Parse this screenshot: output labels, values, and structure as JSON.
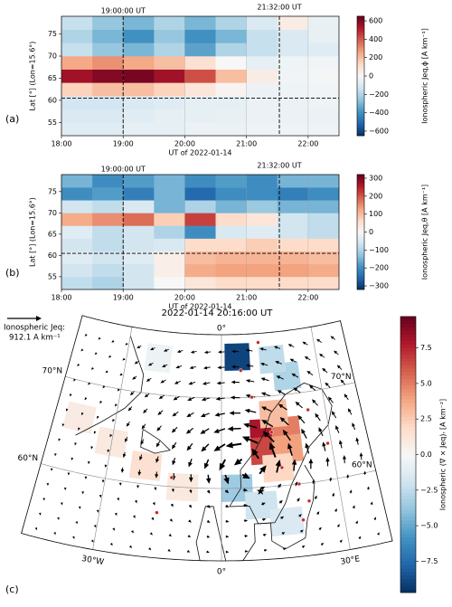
{
  "chart_data": [
    {
      "type": "heatmap",
      "panel": "(a)",
      "x_label": "UT of 2022-01-14",
      "y_label": "Lat [°] (Lon=15.6°)",
      "colorbar_label": "Ionospheric Jeq,ϕ [A km⁻¹]",
      "x_edges": [
        18,
        18.5,
        19,
        19.5,
        20,
        20.5,
        21,
        21.5,
        22,
        22.5
      ],
      "y_edges": [
        52,
        55,
        58,
        61,
        64,
        67,
        70,
        73,
        76,
        79
      ],
      "z": [
        [
          -80,
          -80,
          -60,
          -60,
          -40,
          -40,
          -30,
          -30,
          -30
        ],
        [
          -100,
          -100,
          -80,
          -60,
          -60,
          -50,
          -40,
          -40,
          -40
        ],
        [
          -120,
          -120,
          -100,
          -80,
          -60,
          -60,
          -40,
          -40,
          -30
        ],
        [
          150,
          200,
          200,
          150,
          80,
          20,
          -40,
          -30,
          -20
        ],
        [
          550,
          600,
          620,
          550,
          420,
          200,
          50,
          -20,
          -10
        ],
        [
          250,
          300,
          250,
          200,
          100,
          0,
          -60,
          -30,
          -20
        ],
        [
          -150,
          -250,
          -300,
          -200,
          -350,
          -200,
          -150,
          -100,
          -80
        ],
        [
          -200,
          -300,
          -400,
          -250,
          -400,
          -300,
          -150,
          -100,
          -50
        ],
        [
          -150,
          -250,
          -300,
          -200,
          -300,
          -200,
          -100,
          50,
          -50
        ]
      ],
      "xlim": [
        18,
        22.5
      ],
      "ylim": [
        52,
        79
      ],
      "xticks": [
        {
          "value": 18,
          "label": "18:00"
        },
        {
          "value": 19,
          "label": "19:00"
        },
        {
          "value": 20,
          "label": "20:00"
        },
        {
          "value": 21,
          "label": "21:00"
        },
        {
          "value": 22,
          "label": "22:00"
        }
      ],
      "yticks": [
        55,
        60,
        65,
        70,
        75
      ],
      "clim": [
        -650,
        650
      ],
      "cbar_ticks": [
        {
          "value": 600,
          "label": "600"
        },
        {
          "value": 400,
          "label": "400"
        },
        {
          "value": 200,
          "label": "200"
        },
        {
          "value": 0,
          "label": "0"
        },
        {
          "value": -200,
          "label": "−200"
        },
        {
          "value": -400,
          "label": "−400"
        },
        {
          "value": -600,
          "label": "−600"
        }
      ],
      "markers": [
        {
          "x": 19,
          "label": "19:00:00 UT"
        },
        {
          "x": 21.533,
          "label": "21:32:00 UT"
        }
      ],
      "hline": 60.5,
      "grid": true,
      "colors": [
        "#053061",
        "#2166ac",
        "#4393c3",
        "#92c5de",
        "#d1e5f0",
        "#f7f7f7",
        "#fddbc7",
        "#f4a582",
        "#d6604d",
        "#b2182b",
        "#67001f"
      ]
    },
    {
      "type": "heatmap",
      "panel": "(b)",
      "x_label": "UT of 2022-01-14",
      "y_label": "Lat [°] (Lon=15.6°)",
      "colorbar_label": "Ionospheric Jeq,θ [A km⁻¹]",
      "x_edges": [
        18,
        18.5,
        19,
        19.5,
        20,
        20.5,
        21,
        21.5,
        22,
        22.5
      ],
      "y_edges": [
        52,
        55,
        58,
        61,
        64,
        67,
        70,
        73,
        76,
        79
      ],
      "z": [
        [
          -80,
          -100,
          -60,
          0,
          40,
          60,
          60,
          60,
          60
        ],
        [
          -60,
          -80,
          -60,
          20,
          120,
          130,
          130,
          130,
          120
        ],
        [
          -40,
          -60,
          -40,
          20,
          100,
          110,
          110,
          110,
          100
        ],
        [
          -60,
          -80,
          -60,
          -50,
          60,
          60,
          80,
          60,
          60
        ],
        [
          -40,
          -80,
          -60,
          -100,
          -200,
          -50,
          -40,
          -60,
          -80
        ],
        [
          120,
          150,
          180,
          80,
          220,
          60,
          40,
          -60,
          -80
        ],
        [
          -60,
          -80,
          -50,
          -150,
          -100,
          -150,
          -120,
          -150,
          -150
        ],
        [
          -200,
          -180,
          -220,
          -150,
          -250,
          -200,
          -200,
          -220,
          -200
        ],
        [
          -150,
          -200,
          -180,
          -150,
          -200,
          -180,
          -200,
          -150,
          -150
        ]
      ],
      "xlim": [
        18,
        22.5
      ],
      "ylim": [
        52,
        79
      ],
      "xticks": [
        {
          "value": 18,
          "label": "18:00"
        },
        {
          "value": 19,
          "label": "19:00"
        },
        {
          "value": 20,
          "label": "20:00"
        },
        {
          "value": 21,
          "label": "21:00"
        },
        {
          "value": 22,
          "label": "22:00"
        }
      ],
      "yticks": [
        55,
        60,
        65,
        70,
        75
      ],
      "clim": [
        -320,
        320
      ],
      "cbar_ticks": [
        {
          "value": 300,
          "label": "300"
        },
        {
          "value": 200,
          "label": "200"
        },
        {
          "value": 100,
          "label": "100"
        },
        {
          "value": 0,
          "label": "0"
        },
        {
          "value": -100,
          "label": "−100"
        },
        {
          "value": -200,
          "label": "−200"
        },
        {
          "value": -300,
          "label": "−300"
        }
      ],
      "markers": [
        {
          "x": 19,
          "label": "19:00:00 UT"
        },
        {
          "x": 21.533,
          "label": "21:32:00 UT"
        }
      ],
      "hline": 60.5,
      "grid": true,
      "colors": [
        "#053061",
        "#2166ac",
        "#4393c3",
        "#92c5de",
        "#d1e5f0",
        "#f7f7f7",
        "#fddbc7",
        "#f4a582",
        "#d6604d",
        "#b2182b",
        "#67001f"
      ]
    },
    {
      "type": "map",
      "panel": "(c)",
      "title": "2022-01-14 20:16:00 UT",
      "reference_label": "Ionospheric Jeq:",
      "reference_text": "912.1 A km⁻¹",
      "colorbar_label": "Ionospheric (∇ × Jeq)ᵣ [A km⁻²]",
      "patches": {
        "lat": [
          66,
          64,
          66,
          64,
          68,
          62,
          74.5,
          72,
          74,
          60,
          58,
          56,
          64,
          62,
          60,
          66,
          74
        ],
        "lon": [
          12,
          12,
          18,
          18,
          15,
          15,
          5,
          20,
          16,
          4,
          10,
          16,
          -30,
          -20,
          -10,
          -40,
          -20
        ],
        "values": [
          8.0,
          6.5,
          5.0,
          4.0,
          3.0,
          2.0,
          -9.0,
          -3.0,
          -2.5,
          -3.5,
          -2.0,
          -1.5,
          1.0,
          1.5,
          1.0,
          0.8,
          -0.5
        ]
      },
      "graticule": {
        "lats": [
          60,
          70
        ],
        "lat_labels": [
          "60°N",
          "70°N"
        ],
        "lons": [
          -30,
          0,
          30
        ],
        "lon_labels": [
          "30°W",
          "0°",
          "30°E"
        ]
      },
      "clim": [
        -9.7,
        9.7
      ],
      "cbar_ticks": [
        {
          "value": 7.5,
          "label": "7.5"
        },
        {
          "value": 5,
          "label": "5.0"
        },
        {
          "value": 2.5,
          "label": "2.5"
        },
        {
          "value": 0,
          "label": "0.0"
        },
        {
          "value": -2.5,
          "label": "−2.5"
        },
        {
          "value": -5,
          "label": "−5.0"
        },
        {
          "value": -7.5,
          "label": "−7.5"
        }
      ],
      "colors": [
        "#053061",
        "#2166ac",
        "#4393c3",
        "#92c5de",
        "#d1e5f0",
        "#f7f7f7",
        "#fddbc7",
        "#f4a582",
        "#d6604d",
        "#b2182b",
        "#67001f"
      ]
    }
  ]
}
